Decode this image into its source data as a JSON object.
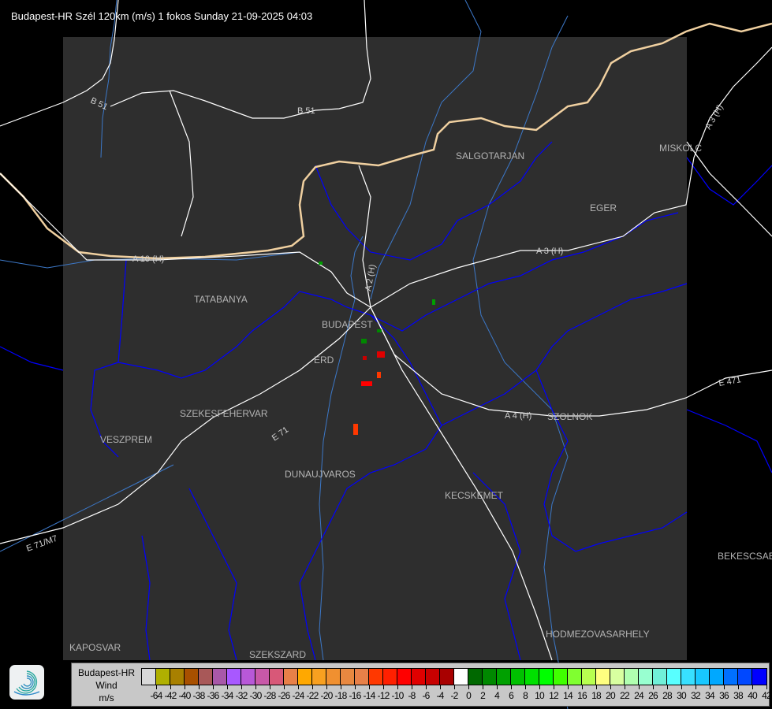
{
  "header": {
    "title": "Budapest-HR Szél 120km (m/s) 1 fokos Sunday 21-09-2025 04:03"
  },
  "map": {
    "cities": [
      "SALGOTARJAN",
      "MISKOLC",
      "EGER",
      "TATABANYA",
      "BUDAPEST",
      "ERD",
      "SZEKESFEHERVAR",
      "VESZPREM",
      "DUNAUJVAROS",
      "KECSKEMET",
      "SZOLNOK",
      "BEKESCSABA",
      "HODMEZOVASARHELY",
      "KAPOSVAR",
      "SZEKSZARD"
    ],
    "roads": [
      "B 51",
      "B 51",
      "A 3 (H)",
      "A 3 (H)",
      "A 10 (H)",
      "A 2 (H)",
      "A 4 (H)",
      "E 471",
      "E 71",
      "E 71/M7"
    ],
    "colors": {
      "background": "#000000",
      "radar_area": "#2e2e2e",
      "roads": "#ffffff",
      "county_borders": "#0000ff",
      "rivers": "#3c78c8",
      "national_border": "#f0d0a0"
    }
  },
  "legend": {
    "station": "Budapest-HR",
    "quantity": "Wind",
    "unit": "m/s",
    "ticks": [
      "-64",
      "-42",
      "-40",
      "-38",
      "-36",
      "-34",
      "-32",
      "-30",
      "-28",
      "-26",
      "-24",
      "-22",
      "-20",
      "-18",
      "-16",
      "-14",
      "-12",
      "-10",
      "-8",
      "-6",
      "-4",
      "-2",
      "0",
      "2",
      "4",
      "6",
      "8",
      "10",
      "12",
      "14",
      "16",
      "18",
      "20",
      "22",
      "24",
      "26",
      "28",
      "30",
      "32",
      "34",
      "36",
      "38",
      "40",
      "42"
    ],
    "colors": [
      "#d8d8d8",
      "#b0b000",
      "#a88000",
      "#a85000",
      "#a85858",
      "#a858a8",
      "#a858ff",
      "#b858d8",
      "#c858a8",
      "#d85878",
      "#e88048",
      "#ffa800",
      "#f8a020",
      "#f09030",
      "#e88840",
      "#e88048",
      "#ff3800",
      "#ff2000",
      "#ff0000",
      "#e00000",
      "#c80000",
      "#a80000",
      "#ffffff",
      "#006800",
      "#008800",
      "#00a000",
      "#00c000",
      "#00e000",
      "#00ff00",
      "#40ff00",
      "#80ff30",
      "#b8ff50",
      "#ffff80",
      "#d8ffa0",
      "#b0ffb0",
      "#98ffd0",
      "#70f0d8",
      "#58ffff",
      "#38e0ff",
      "#18c8ff",
      "#00a8ff",
      "#0070ff",
      "#0048ff",
      "#0000ff"
    ]
  }
}
